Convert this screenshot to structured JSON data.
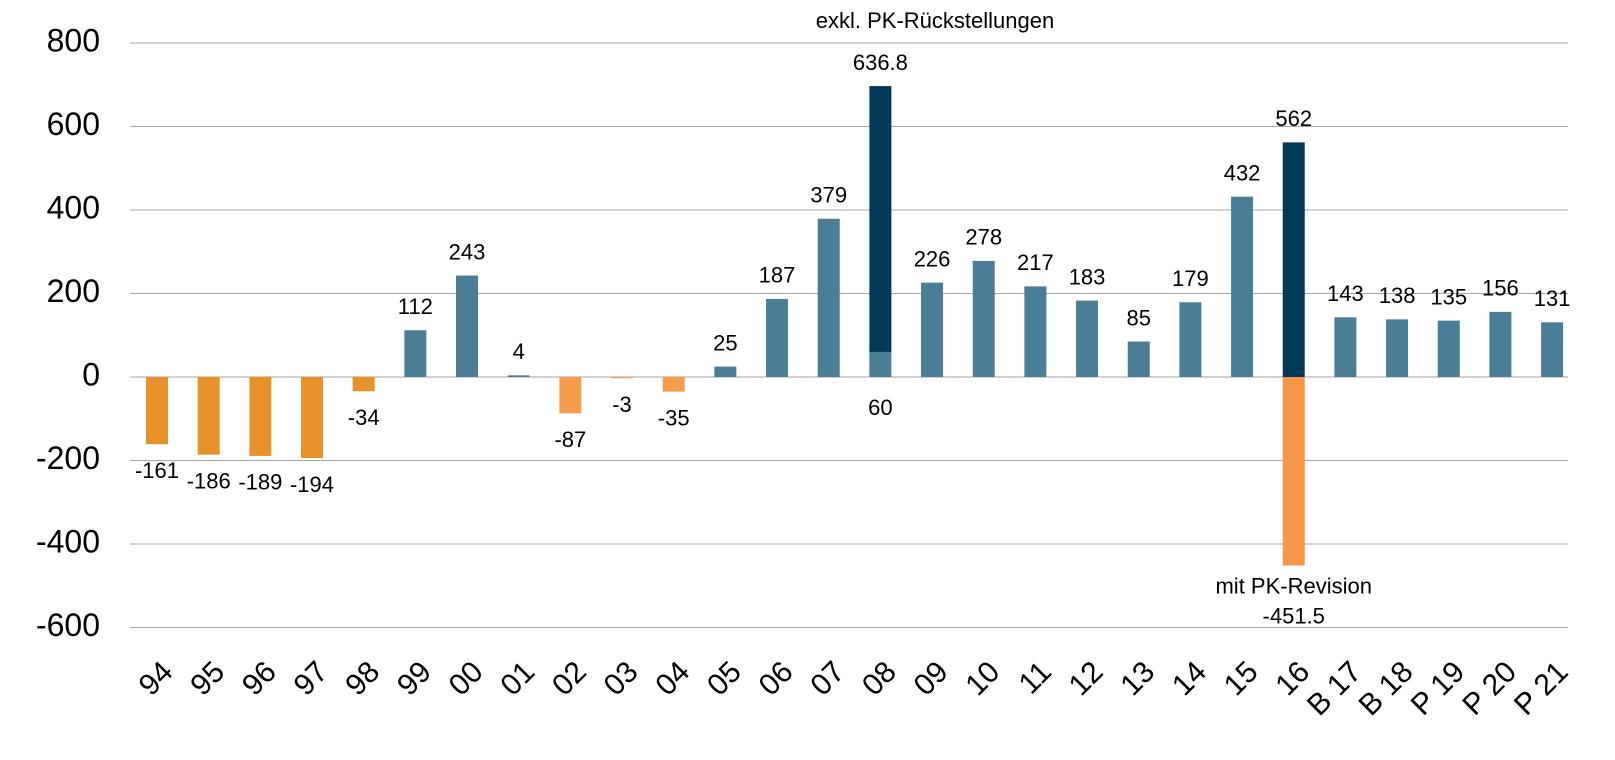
{
  "chart_data": {
    "type": "bar",
    "categories": [
      "94",
      "95",
      "96",
      "97",
      "98",
      "99",
      "00",
      "01",
      "02",
      "03",
      "04",
      "05",
      "06",
      "07",
      "08",
      "09",
      "10",
      "11",
      "12",
      "13",
      "14",
      "15",
      "16",
      "B 17",
      "B 18",
      "P 19",
      "P 20",
      "P 21"
    ],
    "series": [
      {
        "colors": [
          "#e8912a",
          "#e8912a",
          "#e8912a",
          "#e8912a",
          "#e8912a",
          "#4a7d96",
          "#4a7d96",
          "#4a7d96",
          "#f59c4c",
          "#f59c4c",
          "#f59c4c",
          "#4a7d96",
          "#4a7d96",
          "#4a7d96",
          "#4a7d96",
          "#4a7d96",
          "#4a7d96",
          "#4a7d96",
          "#4a7d96",
          "#4a7d96",
          "#4a7d96",
          "#4a7d96",
          null,
          "#4a7d96",
          "#4a7d96",
          "#4a7d96",
          "#4a7d96",
          "#4a7d96"
        ],
        "values": [
          -161,
          -186,
          -189,
          -194,
          -34,
          112,
          243,
          4,
          -87,
          -3,
          -35,
          25,
          187,
          379,
          60,
          226,
          278,
          217,
          183,
          85,
          179,
          432,
          null,
          143,
          138,
          135,
          156,
          131
        ]
      },
      {
        "name": "exkl. PK-Rückstellungen",
        "color": "#003a5a",
        "values": [
          null,
          null,
          null,
          null,
          null,
          null,
          null,
          null,
          null,
          null,
          null,
          null,
          null,
          null,
          636.8,
          null,
          null,
          null,
          null,
          null,
          null,
          null,
          562,
          null,
          null,
          null,
          null,
          null
        ]
      },
      {
        "name": "mit PK-Revision",
        "color": "#f79646",
        "values": [
          null,
          null,
          null,
          null,
          null,
          null,
          null,
          null,
          null,
          null,
          null,
          null,
          null,
          null,
          null,
          null,
          null,
          null,
          null,
          null,
          null,
          null,
          -451.5,
          null,
          null,
          null,
          null,
          null
        ]
      }
    ],
    "ylim": [
      -600,
      800
    ],
    "yticks": [
      -600,
      -400,
      -200,
      0,
      200,
      400,
      600,
      800
    ],
    "grid": true
  }
}
